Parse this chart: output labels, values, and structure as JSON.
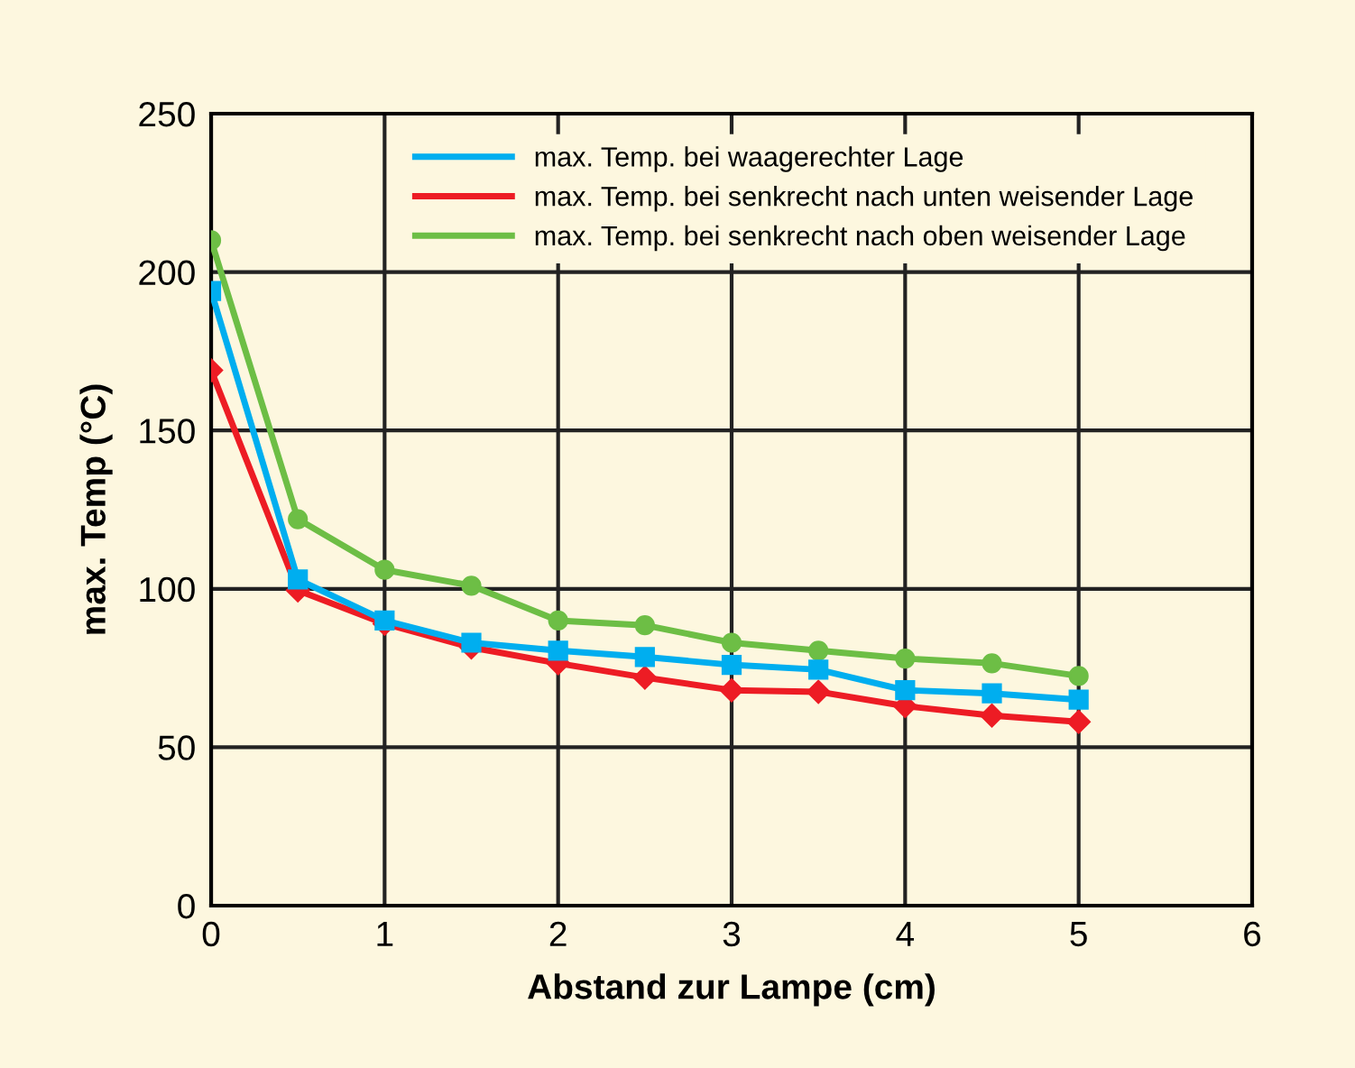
{
  "chart_data": {
    "type": "line",
    "xlabel": "Abstand zur Lampe (cm)",
    "ylabel": "max. Temp (°C)",
    "x": [
      0,
      0.5,
      1,
      1.5,
      2,
      2.5,
      3,
      3.5,
      4,
      4.5,
      5
    ],
    "series": [
      {
        "name": "max. Temp. bei waagerechter Lage",
        "color": "#00aeef",
        "marker": "square",
        "values": [
          194,
          103,
          90,
          83,
          80.5,
          78.5,
          76,
          74.5,
          68,
          67,
          65
        ]
      },
      {
        "name": "max. Temp. bei senkrecht nach unten weisender Lage",
        "color": "#ed1c24",
        "marker": "diamond",
        "values": [
          169,
          99.5,
          89,
          81.5,
          76.5,
          72,
          68,
          67.5,
          63,
          60,
          58
        ]
      },
      {
        "name": "max. Temp. bei senkrecht nach oben weisender Lage",
        "color": "#6dbe45",
        "marker": "circle",
        "values": [
          210,
          122,
          106,
          101,
          90,
          88.5,
          83,
          80.5,
          78,
          76.5,
          72.5
        ]
      }
    ],
    "xlim": [
      0,
      6
    ],
    "xticks": [
      0,
      1,
      2,
      3,
      4,
      5,
      6
    ],
    "ylim": [
      0,
      250
    ],
    "yticks": [
      0,
      50,
      100,
      150,
      200,
      250
    ],
    "grid": true,
    "legend": "top",
    "line_style": "solid"
  }
}
